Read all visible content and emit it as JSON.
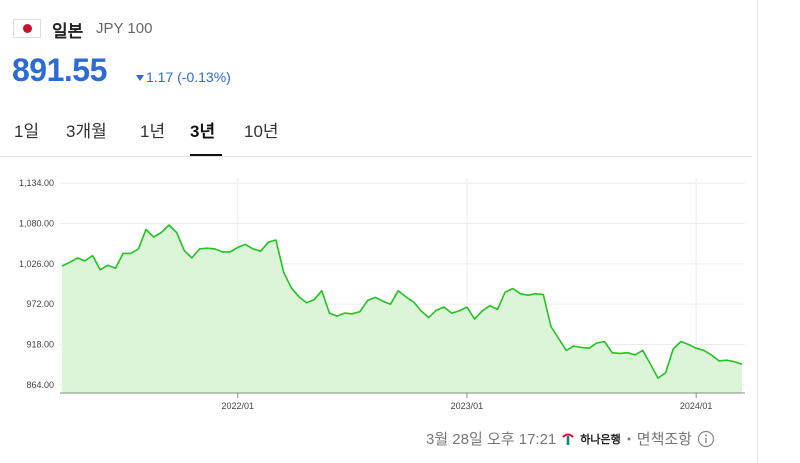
{
  "header": {
    "name": "일본",
    "unit": "JPY 100",
    "price": "891.55",
    "change": "1.17",
    "change_pct": "(-0.13%)"
  },
  "tabs": [
    "1일",
    "3개월",
    "1년",
    "3년",
    "10년"
  ],
  "active_tab": 3,
  "footer": {
    "timestamp": "3월 28일 오후 17:21",
    "bank": "하나은행",
    "disclaimer": "면책조항"
  },
  "chart_data": {
    "type": "area",
    "color": "#22c322",
    "fill": "#dcf5d8",
    "grid": true,
    "categories": [
      null,
      null,
      null,
      null,
      null,
      null,
      null,
      null,
      null,
      null,
      null,
      null,
      null,
      null,
      null,
      null,
      null,
      null,
      null,
      null,
      null,
      null,
      null,
      "2022/01",
      null,
      null,
      null,
      null,
      null,
      null,
      null,
      null,
      null,
      null,
      null,
      null,
      null,
      null,
      null,
      null,
      null,
      null,
      null,
      null,
      null,
      null,
      null,
      null,
      null,
      null,
      null,
      null,
      null,
      "2023/01",
      null,
      null,
      null,
      null,
      null,
      null,
      null,
      null,
      null,
      null,
      null,
      null,
      null,
      null,
      null,
      null,
      null,
      null,
      null,
      null,
      null,
      null,
      null,
      null,
      null,
      null,
      null,
      null,
      null,
      "2024/01",
      null,
      null,
      null,
      null,
      null,
      null
    ],
    "values": [
      1023,
      1028,
      1034,
      1030,
      1037,
      1018,
      1024,
      1020,
      1040,
      1040,
      1046,
      1072,
      1062,
      1068,
      1078,
      1068,
      1044,
      1034,
      1046,
      1047,
      1046,
      1042,
      1042,
      1048,
      1052,
      1046,
      1043,
      1055,
      1058,
      1015,
      994,
      982,
      974,
      978,
      990,
      960,
      956,
      960,
      959,
      962,
      977,
      981,
      976,
      972,
      990,
      982,
      975,
      963,
      954,
      964,
      968,
      960,
      963,
      968,
      952,
      963,
      970,
      965,
      988,
      993,
      986,
      984,
      986,
      985,
      942,
      926,
      910,
      916,
      914,
      913,
      920,
      922,
      907,
      906,
      907,
      904,
      910,
      892,
      873,
      880,
      912,
      922,
      918,
      913,
      910,
      904,
      896,
      897,
      895,
      891.55
    ],
    "ylim": [
      853,
      1141
    ],
    "yticks": [
      {
        "value": 864,
        "label": "864.00"
      },
      {
        "value": 918,
        "label": "918.00"
      },
      {
        "value": 972,
        "label": "972.00"
      },
      {
        "value": 1026,
        "label": "1,026.00"
      },
      {
        "value": 1080,
        "label": "1,080.00"
      },
      {
        "value": 1134,
        "label": "1,134.00"
      }
    ]
  }
}
